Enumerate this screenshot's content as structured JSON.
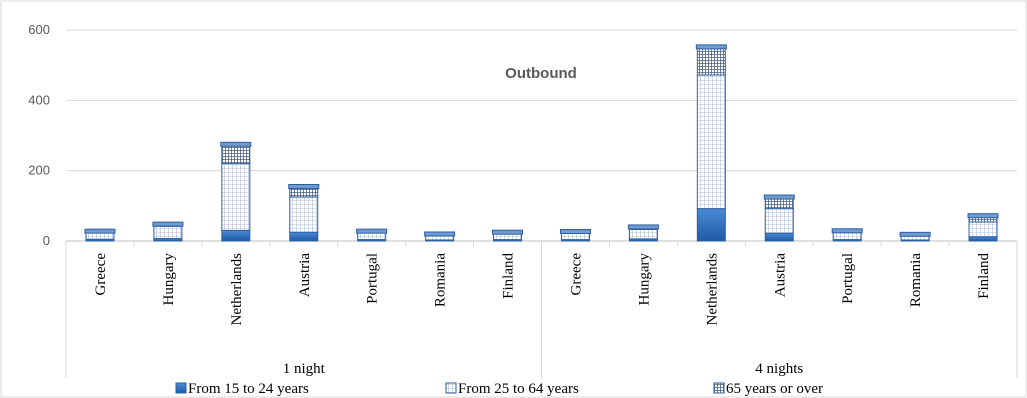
{
  "chart_data": {
    "type": "bar",
    "stacked": true,
    "title": "Outbound",
    "groups": [
      {
        "label": "1 night",
        "categories": [
          "Greece",
          "Hungary",
          "Netherlands",
          "Austria",
          "Portugal",
          "Romania",
          "Finland"
        ]
      },
      {
        "label": "4 nights",
        "categories": [
          "Greece",
          "Hungary",
          "Netherlands",
          "Austria",
          "Portugal",
          "Romania",
          "Finland"
        ]
      }
    ],
    "series": [
      {
        "name": "From 15 to 24 years",
        "color": "#2e6db4",
        "values": [
          5,
          7,
          30,
          25,
          4,
          3,
          4,
          4,
          6,
          92,
          22,
          4,
          3,
          12
        ]
      },
      {
        "name": "From 25 to 64 years",
        "color": "#dbe5f1",
        "values": [
          18,
          35,
          190,
          100,
          19,
          14,
          16,
          18,
          27,
          380,
          70,
          20,
          13,
          42
        ]
      },
      {
        "name": "65 years or over",
        "color": "#c5d4e8",
        "values": [
          5,
          6,
          55,
          30,
          5,
          3,
          5,
          5,
          7,
          80,
          33,
          5,
          3,
          18
        ]
      }
    ],
    "ylim": [
      0,
      600
    ],
    "yticks": [
      0,
      200,
      400,
      600
    ],
    "grid": true,
    "legend_position": "bottom"
  }
}
